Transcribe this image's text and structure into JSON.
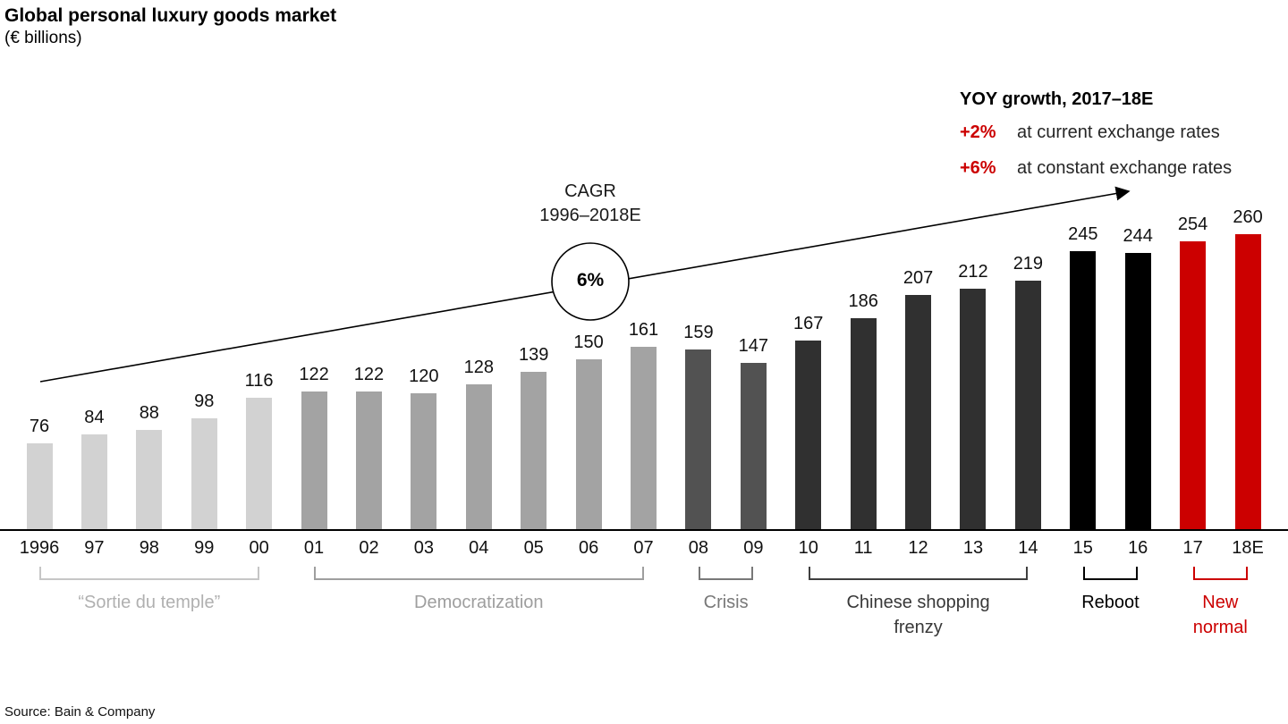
{
  "header": {
    "title": "Global personal luxury goods market",
    "subtitle": "(€ billions)"
  },
  "yoy": {
    "heading": "YOY growth, 2017–18E",
    "rows": [
      {
        "pct": "+2%",
        "text": "at current exchange rates"
      },
      {
        "pct": "+6%",
        "text": "at constant exchange rates"
      }
    ],
    "accent_color": "#cc0000"
  },
  "cagr": {
    "line1": "CAGR",
    "line2": "1996–2018E",
    "value": "6%"
  },
  "source": "Source: Bain & Company",
  "chart_data": {
    "type": "bar",
    "title": "Global personal luxury goods market",
    "unit": "€ billions",
    "xlabel": "",
    "ylabel": "",
    "ylim": [
      0,
      280
    ],
    "grid": false,
    "legend": false,
    "categories": [
      "1996",
      "97",
      "98",
      "99",
      "00",
      "01",
      "02",
      "03",
      "04",
      "05",
      "06",
      "07",
      "08",
      "09",
      "10",
      "11",
      "12",
      "13",
      "14",
      "15",
      "16",
      "17",
      "18E"
    ],
    "values": [
      76,
      84,
      88,
      98,
      116,
      122,
      122,
      120,
      128,
      139,
      150,
      161,
      159,
      147,
      167,
      186,
      207,
      212,
      219,
      245,
      244,
      254,
      260
    ],
    "annotations": {
      "trend_arrow": true,
      "cagr_value_pct": 6,
      "yoy_current_pct": 2,
      "yoy_constant_pct": 6
    },
    "groups": [
      {
        "label_lines": [
          "“Sortie du temple”"
        ],
        "start": 0,
        "end": 4,
        "bar_color": "#d2d2d2",
        "bracket_color": "#c6c6c6",
        "label_color": "#b0b0b0"
      },
      {
        "label_lines": [
          "Democratization"
        ],
        "start": 5,
        "end": 11,
        "bar_color": "#a3a3a3",
        "bracket_color": "#9e9e9e",
        "label_color": "#9e9e9e"
      },
      {
        "label_lines": [
          "Crisis"
        ],
        "start": 12,
        "end": 13,
        "bar_color": "#525252",
        "bracket_color": "#787878",
        "label_color": "#787878"
      },
      {
        "label_lines": [
          "Chinese shopping",
          "frenzy"
        ],
        "start": 14,
        "end": 18,
        "bar_color": "#303030",
        "bracket_color": "#3f3f3f",
        "label_color": "#383838"
      },
      {
        "label_lines": [
          "Reboot"
        ],
        "start": 19,
        "end": 20,
        "bar_color": "#000000",
        "bracket_color": "#000000",
        "label_color": "#000000"
      },
      {
        "label_lines": [
          "New",
          "normal"
        ],
        "start": 21,
        "end": 22,
        "bar_color": "#cc0000",
        "bracket_color": "#cc0000",
        "label_color": "#cc0000"
      }
    ]
  }
}
